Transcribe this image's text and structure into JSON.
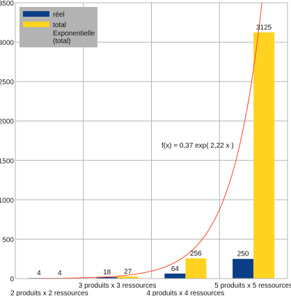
{
  "chart_data": {
    "type": "bar",
    "categories": [
      "2 produits x 2 ressources",
      "3 produits x 3 ressources",
      "4 produits x 4 ressources",
      "5 produits  x 5 ressources"
    ],
    "series": [
      {
        "name": "réel",
        "values": [
          4,
          18,
          64,
          250
        ],
        "color": "#0a3f86"
      },
      {
        "name": "total",
        "values": [
          4,
          27,
          256,
          3125
        ],
        "color": "#ffd320"
      }
    ],
    "trendline": {
      "name": "Exponentielle (total)",
      "equation": "f(x) = 0,37 exp( 2,22 x )",
      "a": 0.37,
      "b": 2.22,
      "color": "#ff4020"
    },
    "yticks": [
      "0",
      "500",
      "1000",
      "1500",
      "2000",
      "2500",
      "3000",
      "3500"
    ],
    "ylim": [
      0,
      3500
    ],
    "grid": true,
    "legend_position": "top-left"
  }
}
